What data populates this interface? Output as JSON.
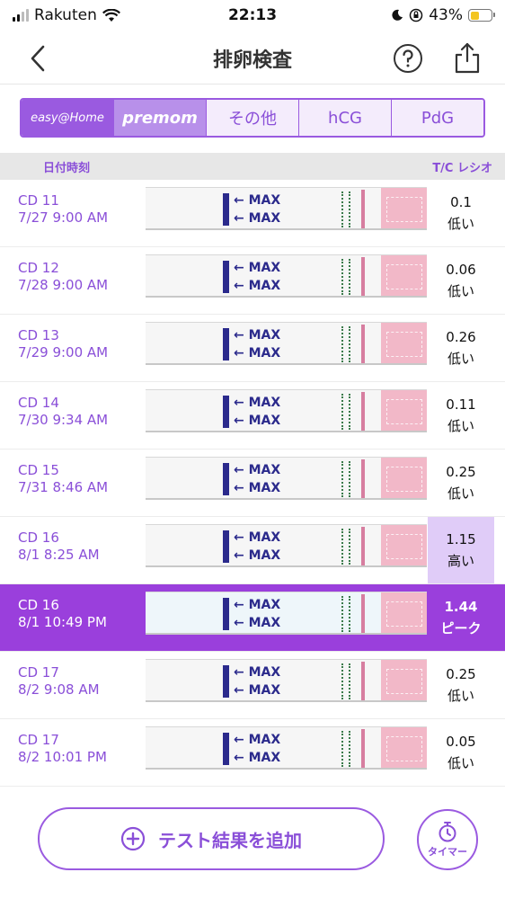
{
  "status_bar": {
    "carrier": "Rakuten",
    "time": "22:13",
    "battery": "43%"
  },
  "nav": {
    "title": "排卵検査"
  },
  "brand_tabs": [
    {
      "label": "easy@Home",
      "active": true
    },
    {
      "label": "premom",
      "active": false
    },
    {
      "label": "その他",
      "active": false
    },
    {
      "label": "hCG",
      "active": false
    },
    {
      "label": "PdG",
      "active": false
    }
  ],
  "list_header": {
    "date_label": "日付時刻",
    "ratio_label": "T/C レシオ"
  },
  "rows": [
    {
      "cd": "CD 11",
      "datetime": "7/27 9:00 AM",
      "ratio": "0.1",
      "level": "低い"
    },
    {
      "cd": "CD 12",
      "datetime": "7/28 9:00 AM",
      "ratio": "0.06",
      "level": "低い"
    },
    {
      "cd": "CD 13",
      "datetime": "7/29 9:00 AM",
      "ratio": "0.26",
      "level": "低い"
    },
    {
      "cd": "CD 14",
      "datetime": "7/30 9:34 AM",
      "ratio": "0.11",
      "level": "低い"
    },
    {
      "cd": "CD 15",
      "datetime": "7/31 8:46 AM",
      "ratio": "0.25",
      "level": "低い"
    },
    {
      "cd": "CD 16",
      "datetime": "8/1 8:25 AM",
      "ratio": "1.15",
      "level": "高い"
    },
    {
      "cd": "CD 16",
      "datetime": "8/1 10:49 PM",
      "ratio": "1.44",
      "level": "ピーク"
    },
    {
      "cd": "CD 17",
      "datetime": "8/2 9:08 AM",
      "ratio": "0.25",
      "level": "低い"
    },
    {
      "cd": "CD 17",
      "datetime": "8/2 10:01 PM",
      "ratio": "0.05",
      "level": "低い"
    }
  ],
  "strip_text": "MAX",
  "bottom": {
    "add_label": "テスト結果を追加",
    "timer_label": "タイマー"
  },
  "colors": {
    "accent": "#9a5ae0",
    "peak": "#9a3fdc",
    "high": "#e0ccf8"
  }
}
